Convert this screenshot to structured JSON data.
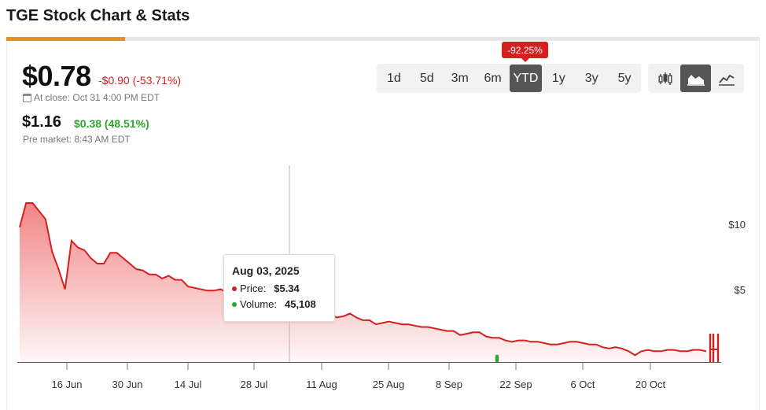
{
  "page": {
    "title": "TGE Stock Chart & Stats"
  },
  "quote": {
    "price": "$0.78",
    "change": "-$0.90 (-53.71%)",
    "close_label": "At close: Oct 31 4:00 PM EDT",
    "pre_price": "$1.16",
    "pre_change": "$0.38 (48.51%)",
    "pre_label": "Pre market: 8:43 AM EDT"
  },
  "range": {
    "badge": "-92.25%",
    "buttons": [
      "1d",
      "5d",
      "3m",
      "6m",
      "YTD",
      "1y",
      "3y",
      "5y"
    ],
    "active": "YTD"
  },
  "chart_types": {
    "icons": [
      "candlestick-icon",
      "area-chart-icon",
      "line-chart-icon"
    ],
    "active": "area-chart-icon"
  },
  "colors": {
    "accent": "#f08c1a",
    "down": "#d42020",
    "up": "#2ea52e",
    "active_btn": "#555555"
  },
  "tooltip": {
    "date": "Aug 03, 2025",
    "price_label": "Price:",
    "price_value": "$5.34",
    "volume_label": "Volume:",
    "volume_value": "45,108"
  },
  "chart_data": {
    "type": "area",
    "xlabel": "",
    "ylabel": "",
    "x_ticks": [
      "16 Jun",
      "30 Jun",
      "14 Jul",
      "28 Jul",
      "11 Aug",
      "25 Aug",
      "8 Sep",
      "22 Sep",
      "6 Oct",
      "20 Oct"
    ],
    "y_ticks": [
      "$10",
      "$5"
    ],
    "ylim": [
      0,
      11.8
    ],
    "series": [
      {
        "values": [
          10.0,
          11.8,
          11.8,
          11.2,
          10.6,
          8.2,
          6.9,
          5.4,
          9.0,
          8.5,
          8.3,
          7.7,
          7.3,
          7.3,
          8.1,
          8.1,
          7.7,
          7.3,
          6.9,
          6.8,
          6.5,
          6.5,
          6.2,
          6.4,
          6.1,
          6.1,
          5.6,
          5.5,
          5.4,
          5.3,
          5.3,
          5.4,
          5.2,
          5.2,
          5.3,
          5.1,
          5.0,
          4.8,
          4.6,
          4.4,
          4.3,
          4.2,
          4.0,
          3.8,
          3.7,
          3.5,
          3.3,
          3.3,
          3.5,
          3.3,
          3.4,
          3.6,
          3.3,
          3.1,
          3.1,
          2.8,
          2.9,
          3.0,
          2.9,
          2.8,
          2.8,
          2.7,
          2.6,
          2.6,
          2.5,
          2.4,
          2.3,
          2.3,
          2.0,
          2.1,
          2.2,
          2.2,
          1.9,
          1.8,
          1.8,
          1.6,
          1.5,
          1.6,
          1.6,
          1.5,
          1.5,
          1.4,
          1.3,
          1.3,
          1.4,
          1.5,
          1.5,
          1.4,
          1.3,
          1.3,
          1.1,
          1.0,
          1.1,
          1.0,
          0.8,
          0.5,
          0.8,
          0.9,
          0.8,
          0.8,
          0.9,
          0.9,
          0.8,
          0.8,
          0.9,
          0.9,
          0.8
        ]
      }
    ],
    "volume_bar": {
      "label": "Sep 18",
      "color": "#2ea52e"
    },
    "tail_ticks": [
      2.0,
      1.9,
      1.8
    ]
  }
}
